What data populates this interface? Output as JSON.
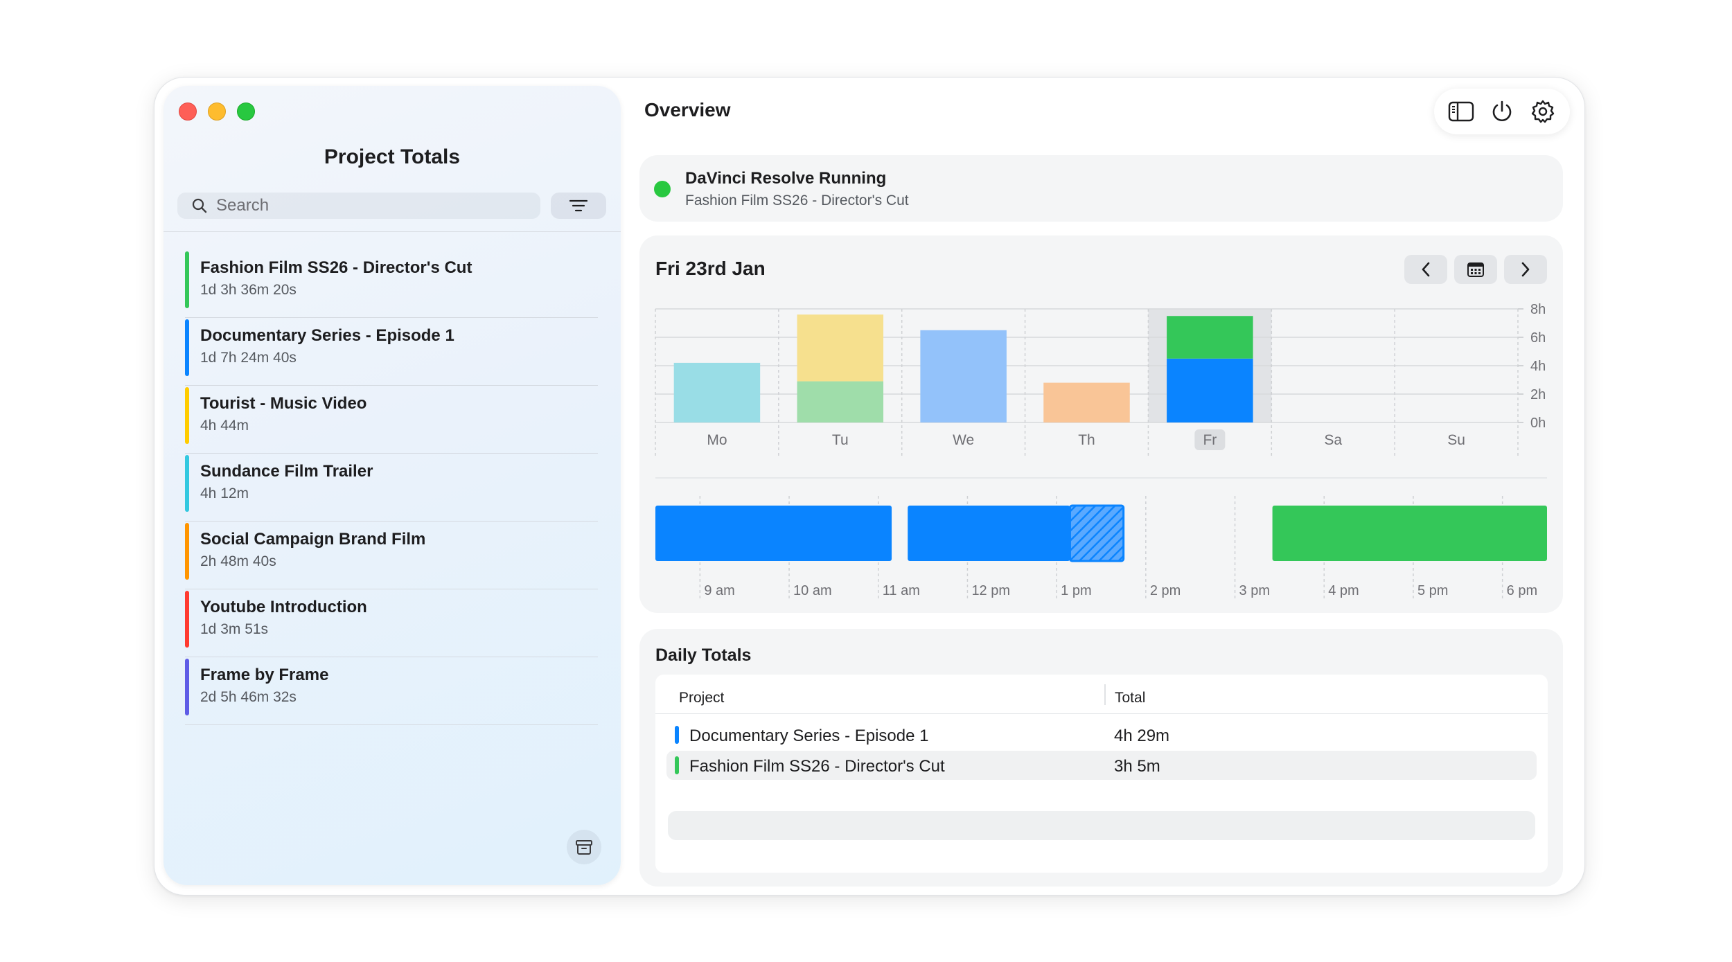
{
  "sidebar": {
    "title": "Project Totals",
    "search_placeholder": "Search",
    "projects": [
      {
        "name": "Fashion Film SS26 - Director's Cut",
        "duration": "1d 3h 36m 20s",
        "color": "#34c759"
      },
      {
        "name": "Documentary Series - Episode 1",
        "duration": "1d 7h 24m 40s",
        "color": "#0a84ff"
      },
      {
        "name": "Tourist - Music Video",
        "duration": "4h 44m",
        "color": "#ffcc00"
      },
      {
        "name": "Sundance Film Trailer",
        "duration": "4h 12m",
        "color": "#32c8e0"
      },
      {
        "name": "Social Campaign Brand Film",
        "duration": "2h 48m 40s",
        "color": "#ff9500"
      },
      {
        "name": "Youtube Introduction",
        "duration": "1d 3m 51s",
        "color": "#ff3b30"
      },
      {
        "name": "Frame by Frame",
        "duration": "2d 5h 46m 32s",
        "color": "#5e5ce6"
      }
    ]
  },
  "header": {
    "title": "Overview",
    "icons": [
      "sidebar-toggle-icon",
      "power-icon",
      "gear-icon"
    ]
  },
  "status": {
    "title": "DaVinci Resolve Running",
    "subtitle": "Fashion Film SS26 - Director's Cut",
    "color": "#28c840"
  },
  "overview": {
    "date": "Fri 23rd Jan"
  },
  "chart_data": [
    {
      "type": "bar",
      "stacked": true,
      "categories": [
        "Mo",
        "Tu",
        "We",
        "Th",
        "Fr",
        "Sa",
        "Su"
      ],
      "selected_category": "Fr",
      "ylim": [
        0,
        8
      ],
      "yticks": [
        "0h",
        "2h",
        "4h",
        "6h",
        "8h"
      ],
      "ytick_values": [
        0,
        2,
        4,
        6,
        8
      ],
      "segments": [
        {
          "category": "Mo",
          "project": "Sundance Film Trailer",
          "hours": 4.2,
          "color": "#99dde6"
        },
        {
          "category": "Tu",
          "project": "Fashion Film SS26 - Director's Cut",
          "hours": 2.9,
          "color": "#9fddaa"
        },
        {
          "category": "Tu",
          "project": "Tourist - Music Video",
          "hours": 4.7,
          "color": "#f6e08e"
        },
        {
          "category": "We",
          "project": "Documentary Series - Episode 1",
          "hours": 6.5,
          "color": "#93c2fa"
        },
        {
          "category": "Th",
          "project": "Social Campaign Brand Film",
          "hours": 2.8,
          "color": "#f9c597"
        },
        {
          "category": "Fr",
          "project": "Documentary Series - Episode 1",
          "hours": 4.5,
          "color": "#0a84ff"
        },
        {
          "category": "Fr",
          "project": "Fashion Film SS26 - Director's Cut",
          "hours": 3.0,
          "color": "#34c759"
        }
      ]
    },
    {
      "type": "timeline",
      "ticks": [
        "9 am",
        "10 am",
        "11 am",
        "12 pm",
        "1 pm",
        "2 pm",
        "3 pm",
        "4 pm",
        "5 pm",
        "6 pm"
      ],
      "range_hours": [
        8.5,
        18.5
      ],
      "blocks": [
        {
          "project": "Documentary Series - Episode 1",
          "start": 8.5,
          "end": 11.15,
          "color": "#0a84ff",
          "hatched": false
        },
        {
          "project": "Documentary Series - Episode 1",
          "start": 11.33,
          "end": 13.15,
          "color": "#0a84ff",
          "hatched": false
        },
        {
          "project": "Documentary Series - Episode 1",
          "start": 13.15,
          "end": 13.75,
          "color": "#0a84ff",
          "hatched": true
        },
        {
          "project": "Fashion Film SS26 - Director's Cut",
          "start": 15.42,
          "end": 18.6,
          "color": "#34c759",
          "hatched": false
        }
      ]
    }
  ],
  "daily_totals": {
    "title": "Daily Totals",
    "col_project": "Project",
    "col_total": "Total",
    "rows": [
      {
        "project": "Documentary Series - Episode 1",
        "total": "4h 29m",
        "color": "#0a84ff"
      },
      {
        "project": "Fashion Film SS26 - Director's Cut",
        "total": "3h 5m",
        "color": "#34c759"
      }
    ]
  }
}
